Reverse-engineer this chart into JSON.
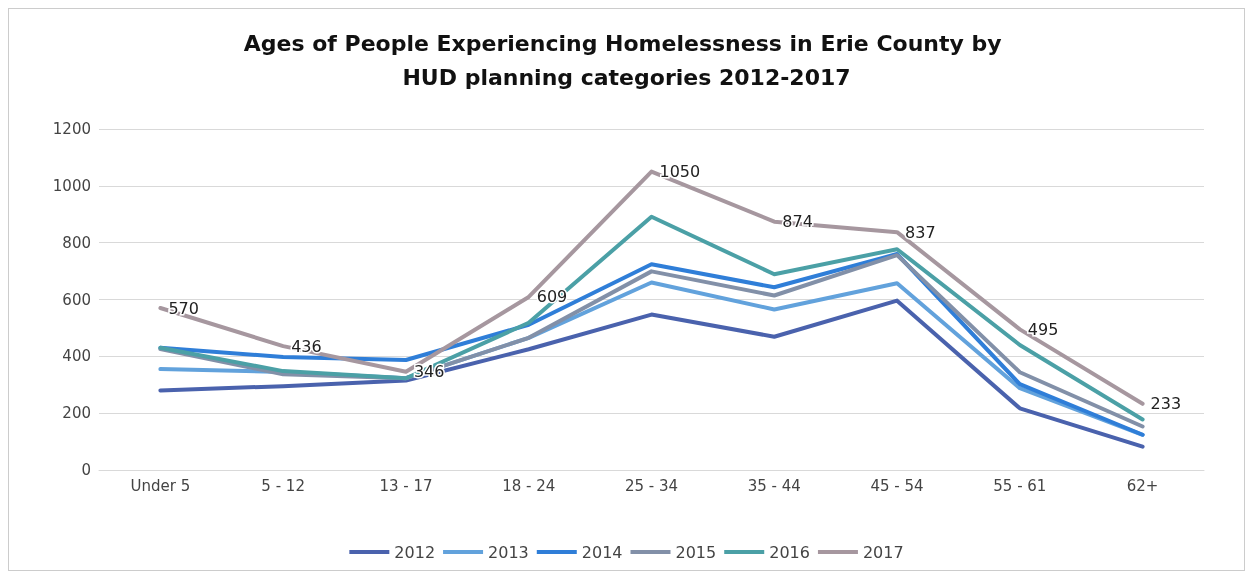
{
  "chart_data": {
    "type": "line",
    "title": "Ages of People Experiencing Homelessness in Erie County by HUD planning categories 2012-2017",
    "categories": [
      "Under 5",
      "5 - 12",
      "13 - 17",
      "18 - 24",
      "25 - 34",
      "35 - 44",
      "45 - 54",
      "55 - 61",
      "62+"
    ],
    "series": [
      {
        "name": "2012",
        "color": "#4a62ad",
        "values": [
          280,
          295,
          315,
          425,
          547,
          469,
          596,
          217,
          82
        ]
      },
      {
        "name": "2013",
        "color": "#62a2dc",
        "values": [
          355,
          345,
          323,
          465,
          660,
          565,
          657,
          288,
          124
        ]
      },
      {
        "name": "2014",
        "color": "#2f7ed8",
        "values": [
          430,
          398,
          387,
          511,
          724,
          643,
          760,
          302,
          124
        ]
      },
      {
        "name": "2015",
        "color": "#8290a8",
        "values": [
          426,
          337,
          323,
          465,
          699,
          614,
          756,
          344,
          153
        ]
      },
      {
        "name": "2016",
        "color": "#4ba0a6",
        "values": [
          430,
          348,
          323,
          518,
          891,
          689,
          777,
          440,
          178
        ]
      },
      {
        "name": "2017",
        "color": "#a6979f",
        "values": [
          570,
          436,
          346,
          609,
          1050,
          874,
          837,
          495,
          233
        ],
        "value_labels": [
          "570",
          "436",
          "346",
          "609",
          "1050",
          "874",
          "837",
          "495",
          "233"
        ]
      }
    ],
    "ylim": [
      0,
      1200
    ],
    "yticks": [
      0,
      200,
      400,
      600,
      800,
      {
        "value": 1000,
        "label": "1000"
      },
      {
        "value": 1200,
        "label": "1200"
      }
    ],
    "grid": "y",
    "legend": "bottom",
    "marker": "none",
    "line_style": "solid"
  }
}
